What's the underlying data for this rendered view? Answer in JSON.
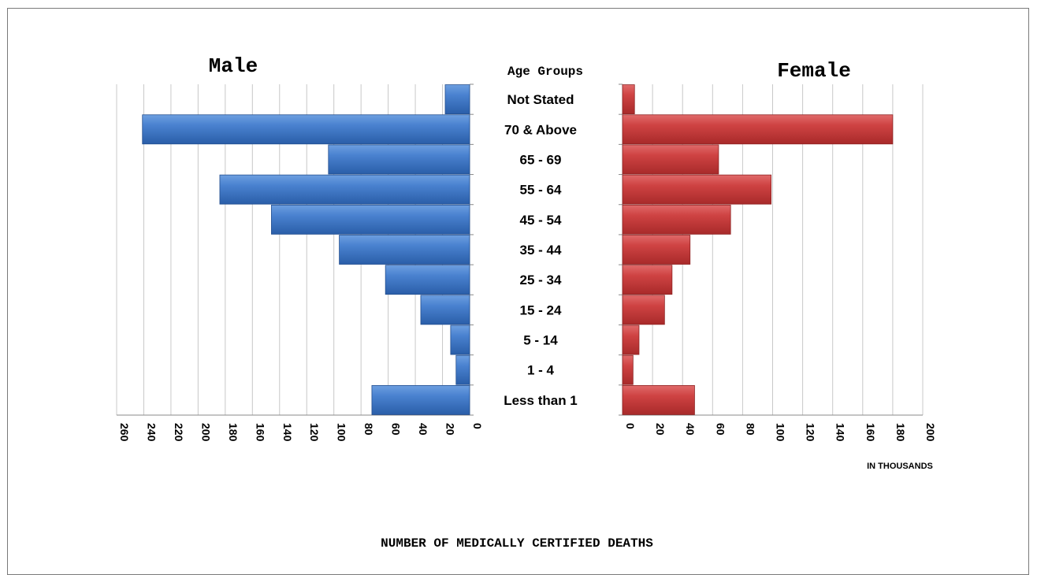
{
  "chart_data": {
    "type": "bar",
    "orientation": "horizontal",
    "layout": "population-pyramid",
    "title": "NUMBER OF MEDICALLY CERTIFIED DEATHS",
    "center_heading": "Age Groups",
    "units_note": "IN THOUSANDS",
    "categories": [
      "Not Stated",
      "70 & Above",
      "65 - 69",
      "55 - 64",
      "45 - 54",
      "35 - 44",
      "25 - 34",
      "15 - 24",
      "5 - 14",
      "1 - 4",
      "Less than 1"
    ],
    "series": [
      {
        "name": "Male",
        "color": "#3a74c4",
        "values": [
          18,
          241,
          104,
          184,
          146,
          96,
          62,
          36,
          14,
          10,
          72
        ],
        "xlim": [
          0,
          260
        ],
        "ticks": [
          0,
          20,
          40,
          60,
          80,
          100,
          120,
          140,
          160,
          180,
          200,
          220,
          240,
          260
        ]
      },
      {
        "name": "Female",
        "color": "#c8393a",
        "values": [
          8,
          180,
          64,
          99,
          72,
          45,
          33,
          28,
          11,
          7,
          48
        ],
        "xlim": [
          0,
          200
        ],
        "ticks": [
          0,
          20,
          40,
          60,
          80,
          100,
          120,
          140,
          160,
          180,
          200
        ]
      }
    ],
    "grid": true
  }
}
